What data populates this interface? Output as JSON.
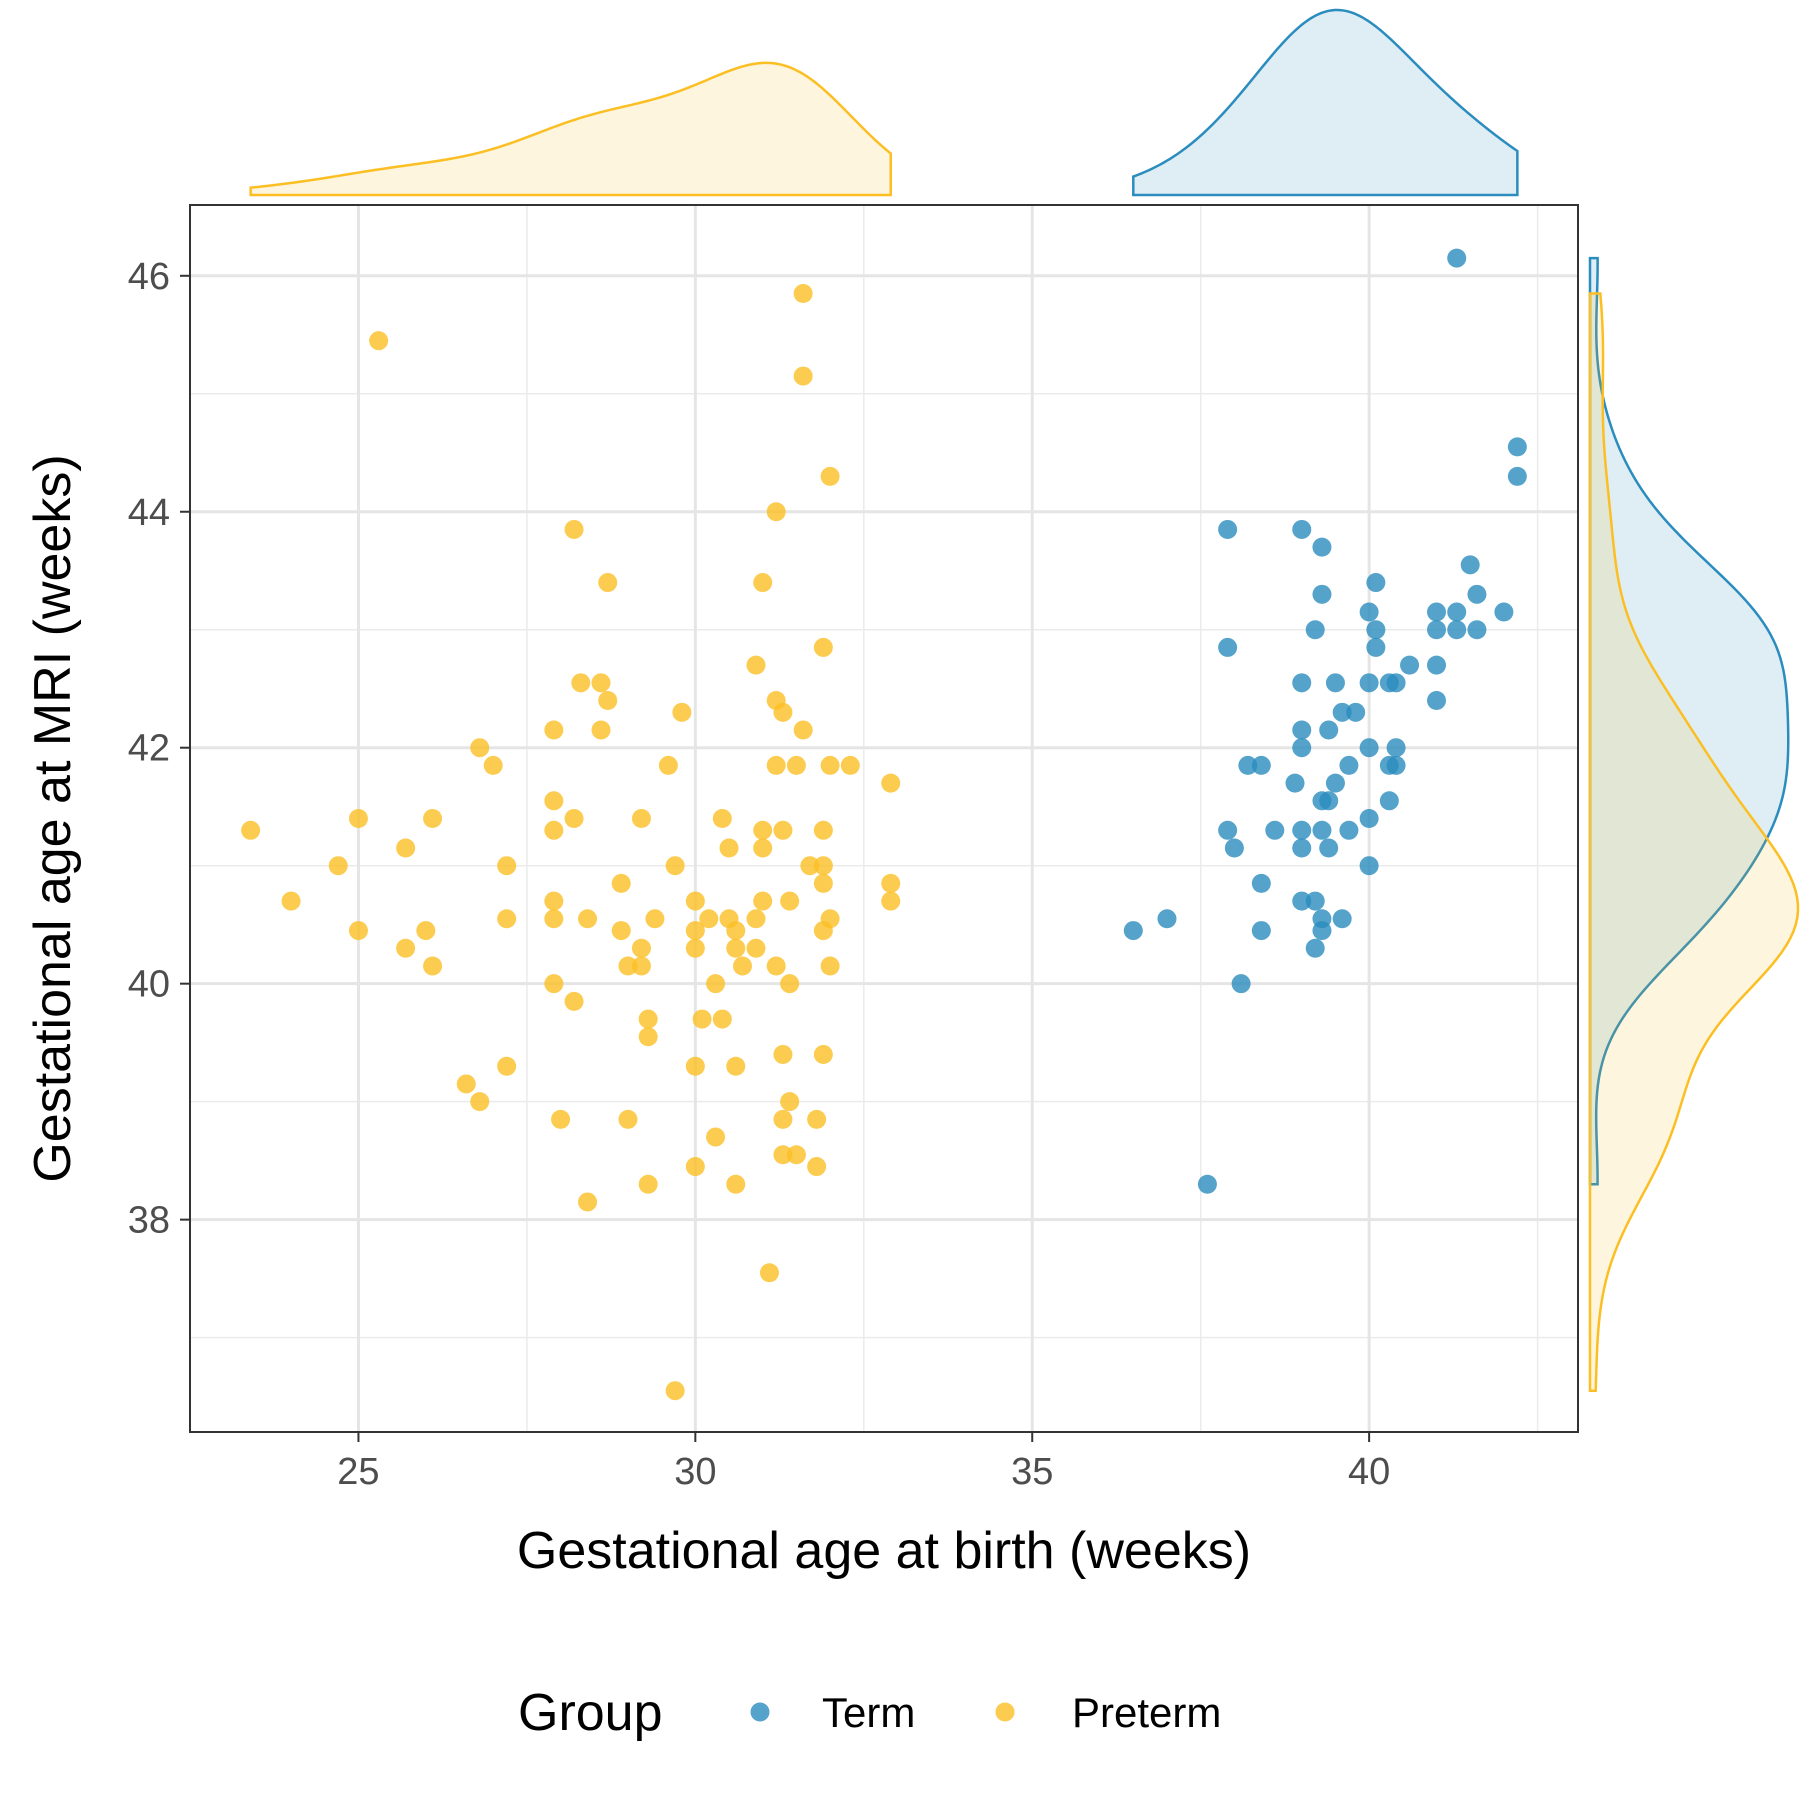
{
  "chart_data": {
    "type": "scatter",
    "xlabel": "Gestational age at birth (weeks)",
    "ylabel": "Gestational age at MRI (weeks)",
    "xlim": [
      22.5,
      43.1
    ],
    "ylim": [
      36.2,
      46.6
    ],
    "x_ticks": [
      "25",
      "30",
      "35",
      "40"
    ],
    "y_ticks": [
      "38",
      "40",
      "42",
      "44",
      "46"
    ],
    "x_tick_values": [
      25,
      30,
      35,
      40
    ],
    "y_tick_values": [
      38,
      40,
      42,
      44,
      46
    ],
    "grid": true,
    "marginal_density": [
      "top",
      "right"
    ],
    "legend": {
      "title": "Group",
      "position": "bottom",
      "entries": [
        "Term",
        "Preterm"
      ]
    },
    "series": [
      {
        "name": "Term",
        "color": "#2b8cbe",
        "points": [
          [
            41.3,
            46.15
          ],
          [
            42.2,
            44.55
          ],
          [
            42.2,
            44.3
          ],
          [
            37.9,
            43.85
          ],
          [
            39.0,
            43.85
          ],
          [
            39.3,
            43.7
          ],
          [
            41.5,
            43.55
          ],
          [
            40.1,
            43.4
          ],
          [
            39.3,
            43.3
          ],
          [
            41.6,
            43.3
          ],
          [
            40.0,
            43.15
          ],
          [
            41.0,
            43.15
          ],
          [
            41.3,
            43.15
          ],
          [
            42.0,
            43.15
          ],
          [
            39.2,
            43.0
          ],
          [
            40.1,
            43.0
          ],
          [
            41.0,
            43.0
          ],
          [
            41.3,
            43.0
          ],
          [
            41.6,
            43.0
          ],
          [
            37.9,
            42.85
          ],
          [
            40.1,
            42.85
          ],
          [
            40.6,
            42.7
          ],
          [
            41.0,
            42.7
          ],
          [
            39.0,
            42.55
          ],
          [
            39.5,
            42.55
          ],
          [
            40.0,
            42.55
          ],
          [
            40.3,
            42.55
          ],
          [
            40.4,
            42.55
          ],
          [
            41.0,
            42.4
          ],
          [
            39.6,
            42.3
          ],
          [
            39.8,
            42.3
          ],
          [
            39.0,
            42.15
          ],
          [
            39.4,
            42.15
          ],
          [
            39.0,
            42.0
          ],
          [
            40.0,
            42.0
          ],
          [
            40.4,
            42.0
          ],
          [
            38.2,
            41.85
          ],
          [
            38.4,
            41.85
          ],
          [
            39.7,
            41.85
          ],
          [
            40.3,
            41.85
          ],
          [
            40.4,
            41.85
          ],
          [
            38.9,
            41.7
          ],
          [
            39.5,
            41.7
          ],
          [
            39.3,
            41.55
          ],
          [
            39.4,
            41.55
          ],
          [
            40.3,
            41.55
          ],
          [
            40.0,
            41.4
          ],
          [
            37.9,
            41.3
          ],
          [
            38.6,
            41.3
          ],
          [
            39.0,
            41.3
          ],
          [
            39.3,
            41.3
          ],
          [
            39.7,
            41.3
          ],
          [
            38.0,
            41.15
          ],
          [
            39.0,
            41.15
          ],
          [
            39.4,
            41.15
          ],
          [
            40.0,
            41.0
          ],
          [
            38.4,
            40.85
          ],
          [
            39.0,
            40.7
          ],
          [
            39.2,
            40.7
          ],
          [
            37.0,
            40.55
          ],
          [
            39.3,
            40.55
          ],
          [
            39.6,
            40.55
          ],
          [
            36.5,
            40.45
          ],
          [
            38.4,
            40.45
          ],
          [
            39.3,
            40.45
          ],
          [
            39.2,
            40.3
          ],
          [
            38.1,
            40.0
          ],
          [
            37.6,
            38.3
          ]
        ]
      },
      {
        "name": "Preterm",
        "color": "#fbbf24",
        "points": [
          [
            31.6,
            45.85
          ],
          [
            25.3,
            45.45
          ],
          [
            31.6,
            45.15
          ],
          [
            32.0,
            44.3
          ],
          [
            31.2,
            44.0
          ],
          [
            28.2,
            43.85
          ],
          [
            28.7,
            43.4
          ],
          [
            31.0,
            43.4
          ],
          [
            31.9,
            42.85
          ],
          [
            30.9,
            42.7
          ],
          [
            28.3,
            42.55
          ],
          [
            28.6,
            42.55
          ],
          [
            28.7,
            42.4
          ],
          [
            31.2,
            42.4
          ],
          [
            29.8,
            42.3
          ],
          [
            31.3,
            42.3
          ],
          [
            27.9,
            42.15
          ],
          [
            28.6,
            42.15
          ],
          [
            31.6,
            42.15
          ],
          [
            26.8,
            42.0
          ],
          [
            27.0,
            41.85
          ],
          [
            29.6,
            41.85
          ],
          [
            31.2,
            41.85
          ],
          [
            31.5,
            41.85
          ],
          [
            32.0,
            41.85
          ],
          [
            32.3,
            41.85
          ],
          [
            32.9,
            41.7
          ],
          [
            27.9,
            41.55
          ],
          [
            25.0,
            41.4
          ],
          [
            26.1,
            41.4
          ],
          [
            28.2,
            41.4
          ],
          [
            29.2,
            41.4
          ],
          [
            30.4,
            41.4
          ],
          [
            23.4,
            41.3
          ],
          [
            27.9,
            41.3
          ],
          [
            31.0,
            41.3
          ],
          [
            31.3,
            41.3
          ],
          [
            31.9,
            41.3
          ],
          [
            25.7,
            41.15
          ],
          [
            30.5,
            41.15
          ],
          [
            31.0,
            41.15
          ],
          [
            24.7,
            41.0
          ],
          [
            27.2,
            41.0
          ],
          [
            29.7,
            41.0
          ],
          [
            31.7,
            41.0
          ],
          [
            31.9,
            41.0
          ],
          [
            28.9,
            40.85
          ],
          [
            31.9,
            40.85
          ],
          [
            32.9,
            40.85
          ],
          [
            24.0,
            40.7
          ],
          [
            27.9,
            40.7
          ],
          [
            30.0,
            40.7
          ],
          [
            31.0,
            40.7
          ],
          [
            31.4,
            40.7
          ],
          [
            32.9,
            40.7
          ],
          [
            27.2,
            40.55
          ],
          [
            27.9,
            40.55
          ],
          [
            28.4,
            40.55
          ],
          [
            29.4,
            40.55
          ],
          [
            30.2,
            40.55
          ],
          [
            30.5,
            40.55
          ],
          [
            30.9,
            40.55
          ],
          [
            32.0,
            40.55
          ],
          [
            25.0,
            40.45
          ],
          [
            26.0,
            40.45
          ],
          [
            28.9,
            40.45
          ],
          [
            30.0,
            40.45
          ],
          [
            30.6,
            40.45
          ],
          [
            31.9,
            40.45
          ],
          [
            25.7,
            40.3
          ],
          [
            29.2,
            40.3
          ],
          [
            30.0,
            40.3
          ],
          [
            30.6,
            40.3
          ],
          [
            30.9,
            40.3
          ],
          [
            26.1,
            40.15
          ],
          [
            29.0,
            40.15
          ],
          [
            29.2,
            40.15
          ],
          [
            30.7,
            40.15
          ],
          [
            31.2,
            40.15
          ],
          [
            32.0,
            40.15
          ],
          [
            27.9,
            40.0
          ],
          [
            30.3,
            40.0
          ],
          [
            31.4,
            40.0
          ],
          [
            28.2,
            39.85
          ],
          [
            29.3,
            39.7
          ],
          [
            30.1,
            39.7
          ],
          [
            30.4,
            39.7
          ],
          [
            29.3,
            39.55
          ],
          [
            31.3,
            39.4
          ],
          [
            31.9,
            39.4
          ],
          [
            27.2,
            39.3
          ],
          [
            30.0,
            39.3
          ],
          [
            30.6,
            39.3
          ],
          [
            26.6,
            39.15
          ],
          [
            26.8,
            39.0
          ],
          [
            31.4,
            39.0
          ],
          [
            28.0,
            38.85
          ],
          [
            29.0,
            38.85
          ],
          [
            31.3,
            38.85
          ],
          [
            31.8,
            38.85
          ],
          [
            30.3,
            38.7
          ],
          [
            31.3,
            38.55
          ],
          [
            31.5,
            38.55
          ],
          [
            30.0,
            38.45
          ],
          [
            31.8,
            38.45
          ],
          [
            29.3,
            38.3
          ],
          [
            30.6,
            38.3
          ],
          [
            28.4,
            38.15
          ],
          [
            31.1,
            37.55
          ],
          [
            29.7,
            36.55
          ]
        ]
      }
    ]
  }
}
